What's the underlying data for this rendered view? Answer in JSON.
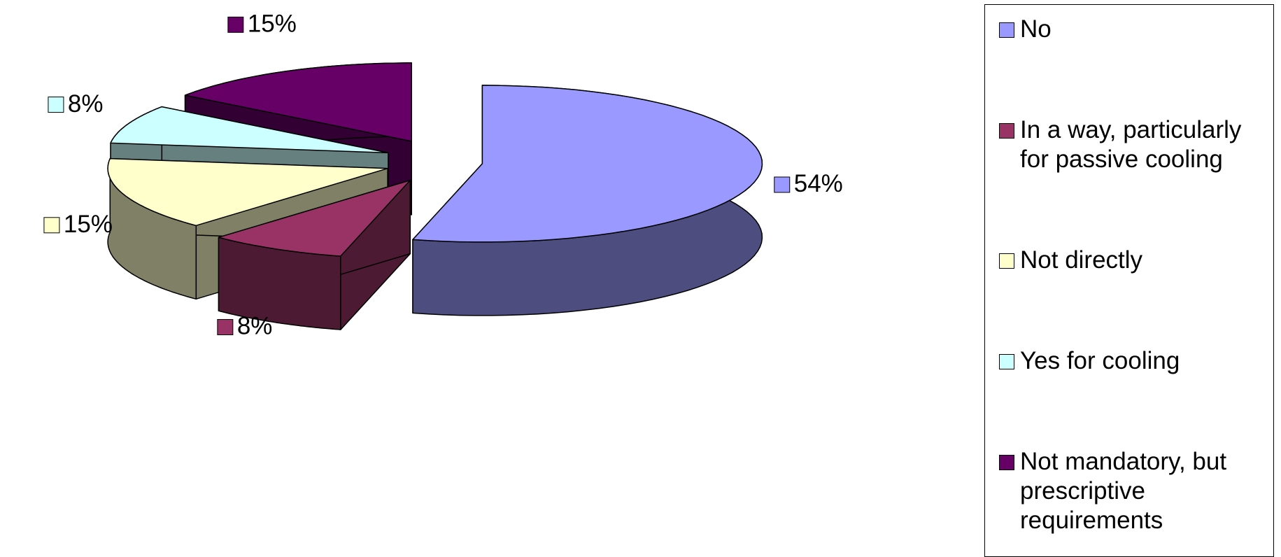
{
  "chart_data": {
    "type": "pie3d",
    "categories": [
      "No",
      "In a way, particularly for passive cooling",
      "Not directly",
      "Yes for cooling",
      "Not mandatory, but prescriptive requirements"
    ],
    "values": [
      54,
      8,
      15,
      8,
      15
    ],
    "value_labels": [
      "54%",
      "8%",
      "15%",
      "8%",
      "15%"
    ],
    "colors": [
      "#9999ff",
      "#993366",
      "#ffffcc",
      "#ccffff",
      "#660066"
    ],
    "legend": "right"
  }
}
